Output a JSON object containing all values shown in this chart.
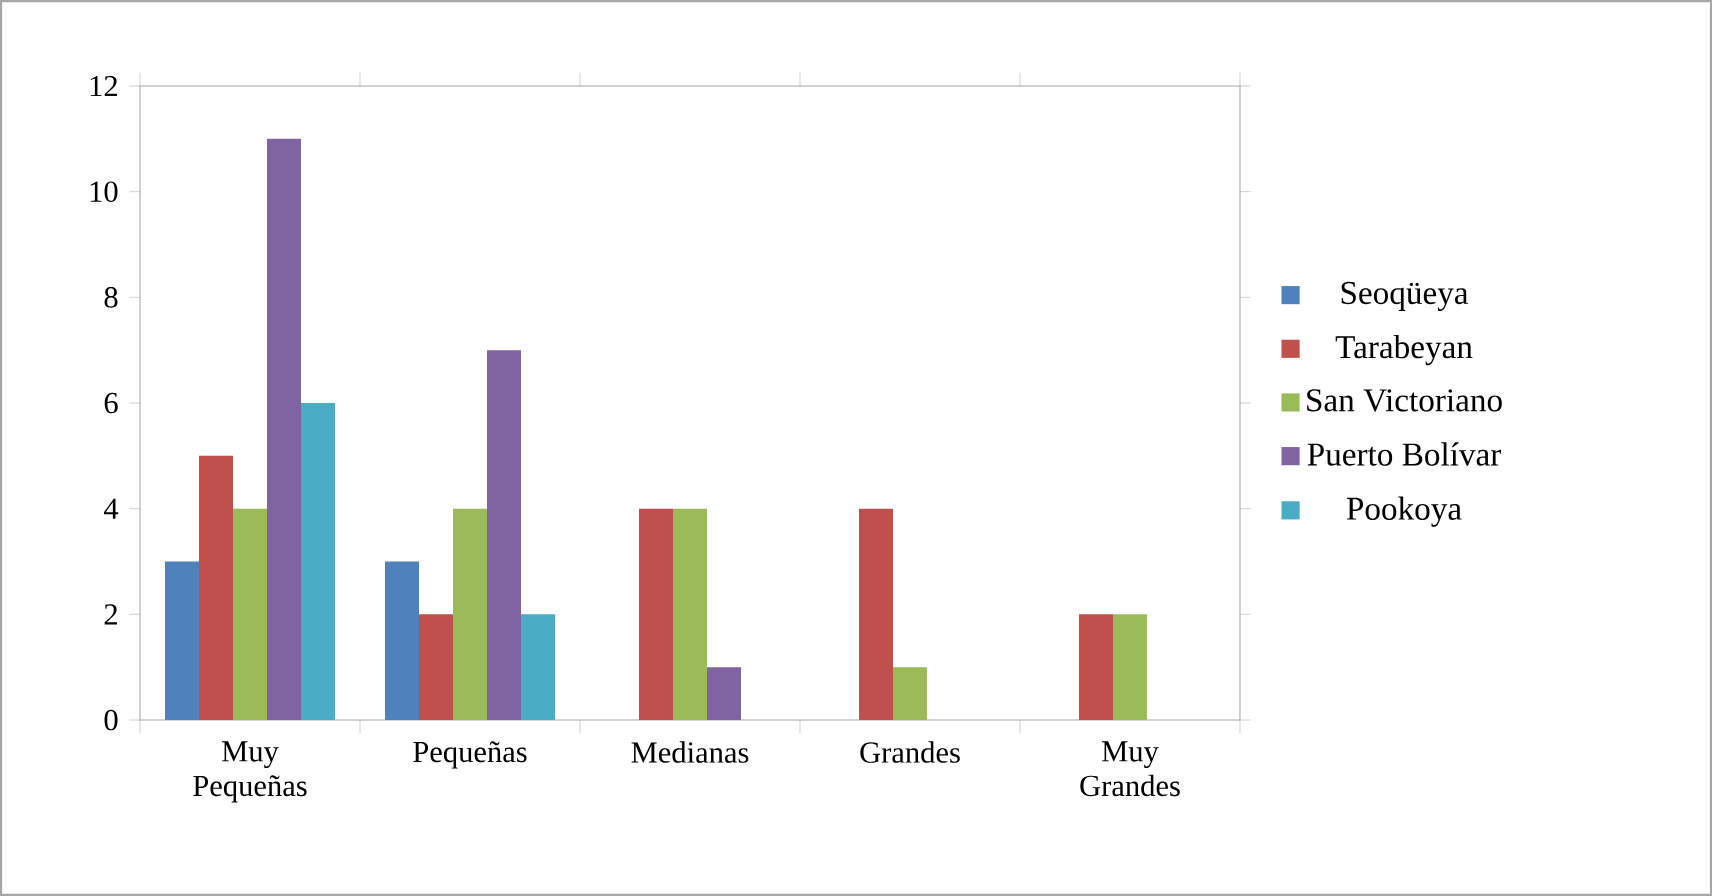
{
  "chart_data": {
    "type": "bar",
    "categories": [
      "Muy Pequeñas",
      "Pequeñas",
      "Medianas",
      "Grandes",
      "Muy Grandes"
    ],
    "series": [
      {
        "name": "Seoqüeya",
        "color": "#4f81bd",
        "values": [
          3,
          3,
          0,
          0,
          0
        ]
      },
      {
        "name": "Tarabeyan",
        "color": "#c0504d",
        "values": [
          5,
          2,
          4,
          4,
          2
        ]
      },
      {
        "name": "San Victoriano",
        "color": "#9bbb59",
        "values": [
          4,
          4,
          4,
          1,
          2
        ]
      },
      {
        "name": "Puerto Bolívar",
        "color": "#8064a2",
        "values": [
          11,
          7,
          1,
          0,
          0
        ]
      },
      {
        "name": "Pookoya",
        "color": "#4bacc6",
        "values": [
          6,
          2,
          0,
          0,
          0
        ]
      }
    ],
    "ylim": [
      0,
      12
    ],
    "yticks": [
      0,
      2,
      4,
      6,
      8,
      10,
      12
    ],
    "grid": false,
    "legend": "right"
  }
}
